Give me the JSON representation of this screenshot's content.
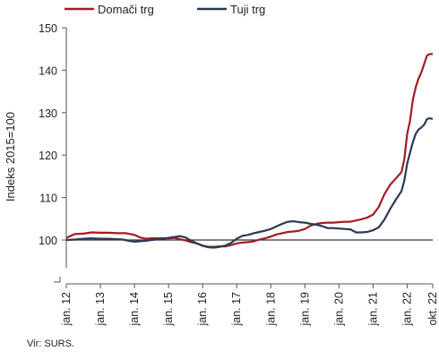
{
  "colors": {
    "domestic": "#a31c23",
    "foreign": "#2b3a55",
    "axis": "#555555",
    "baseline": "#333333"
  },
  "source": "Vir: SURS.",
  "chart_data": {
    "type": "line",
    "title": "",
    "xlabel": "",
    "ylabel": "Indeks 2015=100",
    "ylim": [
      90,
      150
    ],
    "yticks": [
      150,
      140,
      130,
      120,
      110,
      100
    ],
    "axis_break": true,
    "reference_line": 100,
    "legend_position": "top-left",
    "x_tick_labels": [
      {
        "t": 0,
        "label": "jan. 12"
      },
      {
        "t": 12,
        "label": "jan. 13"
      },
      {
        "t": 24,
        "label": "jan. 14"
      },
      {
        "t": 36,
        "label": "jan. 15"
      },
      {
        "t": 48,
        "label": "jan. 16"
      },
      {
        "t": 60,
        "label": "jan. 17"
      },
      {
        "t": 72,
        "label": "jan. 18"
      },
      {
        "t": 84,
        "label": "jan. 19"
      },
      {
        "t": 96,
        "label": "jan. 20"
      },
      {
        "t": 108,
        "label": "jan. 21"
      },
      {
        "t": 120,
        "label": "jan. 22"
      },
      {
        "t": 129,
        "label": "okt. 22"
      }
    ],
    "x_range": [
      0,
      129
    ],
    "series": [
      {
        "name": "Domači trg",
        "color": "#a31c23",
        "points": [
          [
            0,
            100.5
          ],
          [
            3,
            101.4
          ],
          [
            6,
            101.5
          ],
          [
            9,
            101.8
          ],
          [
            12,
            101.7
          ],
          [
            15,
            101.7
          ],
          [
            18,
            101.6
          ],
          [
            21,
            101.6
          ],
          [
            24,
            101.2
          ],
          [
            26,
            100.6
          ],
          [
            28,
            100.3
          ],
          [
            30,
            100.4
          ],
          [
            33,
            100.4
          ],
          [
            36,
            100.4
          ],
          [
            38,
            100.5
          ],
          [
            40,
            100.2
          ],
          [
            42,
            99.9
          ],
          [
            44,
            99.5
          ],
          [
            46,
            99.2
          ],
          [
            48,
            98.7
          ],
          [
            50,
            98.4
          ],
          [
            52,
            98.4
          ],
          [
            54,
            98.5
          ],
          [
            56,
            98.5
          ],
          [
            58,
            98.8
          ],
          [
            60,
            99.2
          ],
          [
            62,
            99.4
          ],
          [
            64,
            99.5
          ],
          [
            66,
            99.7
          ],
          [
            68,
            100.1
          ],
          [
            70,
            100.4
          ],
          [
            72,
            100.8
          ],
          [
            74,
            101.3
          ],
          [
            76,
            101.6
          ],
          [
            78,
            101.9
          ],
          [
            80,
            102.0
          ],
          [
            82,
            102.2
          ],
          [
            84,
            102.6
          ],
          [
            86,
            103.4
          ],
          [
            88,
            103.8
          ],
          [
            90,
            104.0
          ],
          [
            92,
            104.1
          ],
          [
            94,
            104.1
          ],
          [
            96,
            104.2
          ],
          [
            98,
            104.3
          ],
          [
            100,
            104.3
          ],
          [
            102,
            104.6
          ],
          [
            104,
            104.9
          ],
          [
            106,
            105.3
          ],
          [
            108,
            106.0
          ],
          [
            110,
            107.8
          ],
          [
            112,
            110.8
          ],
          [
            114,
            113.0
          ],
          [
            116,
            114.5
          ],
          [
            118,
            116.0
          ],
          [
            119,
            119.0
          ],
          [
            120,
            125.0
          ],
          [
            121,
            128.0
          ],
          [
            122,
            133.0
          ],
          [
            123,
            136.0
          ],
          [
            124,
            138.0
          ],
          [
            125,
            139.5
          ],
          [
            126,
            141.5
          ],
          [
            127,
            143.5
          ],
          [
            128,
            143.8
          ],
          [
            129,
            143.8
          ]
        ]
      },
      {
        "name": "Tuji trg",
        "color": "#2b3a55",
        "points": [
          [
            0,
            100.0
          ],
          [
            3,
            100.1
          ],
          [
            6,
            100.3
          ],
          [
            9,
            100.4
          ],
          [
            12,
            100.3
          ],
          [
            15,
            100.3
          ],
          [
            18,
            100.2
          ],
          [
            20,
            100.1
          ],
          [
            22,
            99.8
          ],
          [
            24,
            99.6
          ],
          [
            26,
            99.7
          ],
          [
            28,
            99.8
          ],
          [
            30,
            100.0
          ],
          [
            32,
            100.2
          ],
          [
            34,
            100.3
          ],
          [
            36,
            100.5
          ],
          [
            38,
            100.7
          ],
          [
            40,
            100.9
          ],
          [
            42,
            100.6
          ],
          [
            44,
            99.8
          ],
          [
            46,
            99.2
          ],
          [
            48,
            98.6
          ],
          [
            50,
            98.3
          ],
          [
            52,
            98.2
          ],
          [
            54,
            98.4
          ],
          [
            56,
            98.7
          ],
          [
            58,
            99.3
          ],
          [
            60,
            100.3
          ],
          [
            62,
            101.0
          ],
          [
            64,
            101.2
          ],
          [
            66,
            101.6
          ],
          [
            68,
            101.9
          ],
          [
            70,
            102.2
          ],
          [
            72,
            102.6
          ],
          [
            74,
            103.2
          ],
          [
            76,
            103.8
          ],
          [
            78,
            104.3
          ],
          [
            80,
            104.4
          ],
          [
            82,
            104.2
          ],
          [
            84,
            104.1
          ],
          [
            86,
            103.8
          ],
          [
            88,
            103.6
          ],
          [
            90,
            103.3
          ],
          [
            92,
            102.8
          ],
          [
            94,
            102.8
          ],
          [
            96,
            102.7
          ],
          [
            98,
            102.6
          ],
          [
            100,
            102.5
          ],
          [
            102,
            101.8
          ],
          [
            104,
            101.8
          ],
          [
            106,
            101.9
          ],
          [
            108,
            102.3
          ],
          [
            110,
            103.0
          ],
          [
            112,
            104.8
          ],
          [
            114,
            107.3
          ],
          [
            116,
            109.5
          ],
          [
            118,
            111.5
          ],
          [
            119,
            114.0
          ],
          [
            120,
            118.0
          ],
          [
            121,
            120.5
          ],
          [
            122,
            123.0
          ],
          [
            123,
            125.0
          ],
          [
            124,
            126.0
          ],
          [
            125,
            126.5
          ],
          [
            126,
            127.2
          ],
          [
            127,
            128.5
          ],
          [
            128,
            128.7
          ],
          [
            129,
            128.5
          ]
        ]
      }
    ]
  }
}
